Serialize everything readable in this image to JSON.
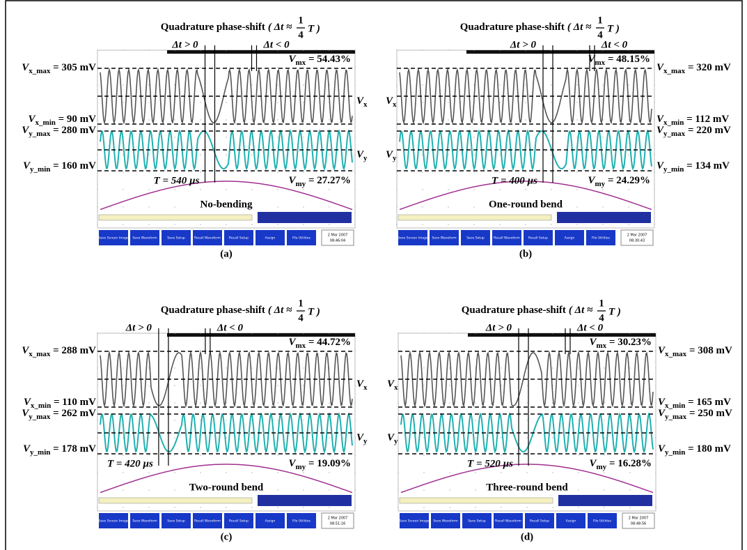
{
  "symbol": "V",
  "x_sub": "x",
  "y_sub": "y",
  "heading": "Quadrature phase-shift",
  "formula": {
    "open": "( Δt ≈",
    "num": "1",
    "den": "4",
    "close": "T )"
  },
  "dt_pos": "Δt > 0",
  "dt_neg": "Δt < 0",
  "scope_buttons": [
    "Save Screen Image",
    "Save Waveform",
    "Save Setup",
    "Recall Waveform",
    "Recall Setup",
    "Assign",
    "File Utilities"
  ],
  "panels": [
    {
      "label": "(a)",
      "condition": "No-bending",
      "vx_max": {
        "sub": "x_max",
        "text": " = 305 mV"
      },
      "vx_min": {
        "sub": "x_min",
        "text": " = 90 mV"
      },
      "vy_max": {
        "sub": "y_max",
        "text": " = 280 mV"
      },
      "vy_min": {
        "sub": "y_min",
        "text": " = 160 mV"
      },
      "vmx": {
        "sub": "mx",
        "text": " = 54.43%"
      },
      "vmy": {
        "sub": "my",
        "text": " = 27.27%"
      },
      "period": "T = 540 µs",
      "date": "2 Mar 2007",
      "time": "08:46:04"
    },
    {
      "label": "(b)",
      "condition": "One-round bend",
      "vx_max": {
        "sub": "x_max",
        "text": " = 320 mV"
      },
      "vx_min": {
        "sub": "x_min",
        "text": " = 112 mV"
      },
      "vy_max": {
        "sub": "y_max",
        "text": " = 220 mV"
      },
      "vy_min": {
        "sub": "y_min",
        "text": " = 134 mV"
      },
      "vmx": {
        "sub": "mx",
        "text": " = 48.15%"
      },
      "vmy": {
        "sub": "my",
        "text": " = 24.29%"
      },
      "period": "T = 400 µs",
      "date": "2 Mar 2007",
      "time": "08:30:43"
    },
    {
      "label": "(c)",
      "condition": "Two-round bend",
      "vx_max": {
        "sub": "x_max",
        "text": " = 288 mV"
      },
      "vx_min": {
        "sub": "x_min",
        "text": " = 110 mV"
      },
      "vy_max": {
        "sub": "y_max",
        "text": " = 262 mV"
      },
      "vy_min": {
        "sub": "y_min",
        "text": " = 178 mV"
      },
      "vmx": {
        "sub": "mx",
        "text": " = 44.72%"
      },
      "vmy": {
        "sub": "my",
        "text": " = 19.09%"
      },
      "period": "T = 420 µs",
      "date": "2 Mar 2007",
      "time": "08:51:16"
    },
    {
      "label": "(d)",
      "condition": "Three-round bend",
      "vx_max": {
        "sub": "x_max",
        "text": " = 308 mV"
      },
      "vx_min": {
        "sub": "x_min",
        "text": " = 165 mV"
      },
      "vy_max": {
        "sub": "y_max",
        "text": " = 250 mV"
      },
      "vy_min": {
        "sub": "y_min",
        "text": " = 180 mV"
      },
      "vmx": {
        "sub": "mx",
        "text": " = 30.23%"
      },
      "vmy": {
        "sub": "my",
        "text": " = 16.28%"
      },
      "period": "T = 520 µs",
      "date": "2 Mar 2007",
      "time": "08:48:56"
    }
  ]
}
